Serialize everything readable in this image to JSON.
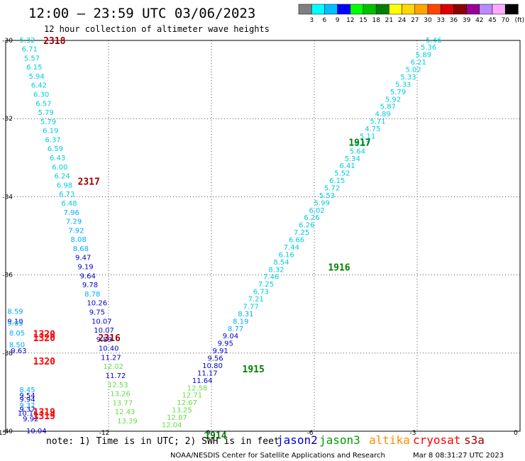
{
  "chart_data": {
    "type": "scatter",
    "title": "12:00 – 23:59 UTC 03/06/2023",
    "subtitle": "12 hour collection of altimeter wave heights",
    "xlim": [
      -15,
      0
    ],
    "ylim": [
      -40,
      -30
    ],
    "x_ticks": [
      -15,
      -12,
      -9,
      -6,
      -3,
      0
    ],
    "y_ticks": [
      -30,
      -32,
      -34,
      -36,
      -38,
      -40
    ],
    "grid": true,
    "color_scale": {
      "unit": "(ft)",
      "labels": [
        "3",
        "6",
        "9",
        "12",
        "15",
        "18",
        "21",
        "24",
        "27",
        "30",
        "33",
        "36",
        "39",
        "42",
        "45",
        "70"
      ],
      "colors": [
        "#7f7f7f",
        "#00ffff",
        "#00bfff",
        "#0000ff",
        "#00ff00",
        "#00c000",
        "#008000",
        "#ffff00",
        "#ffd700",
        "#ffa500",
        "#ff4500",
        "#dd0000",
        "#8b0000",
        "#990099",
        "#bb88ff",
        "#ffaaff",
        "#000000"
      ]
    },
    "series": [
      {
        "name": "jason2",
        "color": "#0000cc",
        "points": []
      },
      {
        "name": "jason3",
        "color": "#009900",
        "points": [
          {
            "x": -12.1,
            "y": -38.42,
            "v": "12.02"
          },
          {
            "x": -12.0,
            "y": -38.92,
            "v": "12.53"
          },
          {
            "x": -11.95,
            "y": -39.16,
            "v": "13.26"
          },
          {
            "x": -11.9,
            "y": -39.4,
            "v": "13.77"
          },
          {
            "x": -11.85,
            "y": -39.64,
            "v": "12.43"
          },
          {
            "x": -11.8,
            "y": -39.88,
            "v": "13.39"
          },
          {
            "x": -10.3,
            "y": -39.1,
            "v": "12.58"
          },
          {
            "x": -10.4,
            "y": -39.3,
            "v": "12.71"
          },
          {
            "x": -10.5,
            "y": -39.5,
            "v": "12.67"
          },
          {
            "x": -10.6,
            "y": -39.7,
            "v": "13.25"
          },
          {
            "x": -10.7,
            "y": -39.9,
            "v": "12.87"
          },
          {
            "x": -10.8,
            "y": -40.1,
            "v": "12.04"
          }
        ]
      },
      {
        "name": "altika",
        "color": "#ff8c00",
        "points": []
      },
      {
        "name": "cryosat",
        "color": "#ff0000",
        "points": [
          {
            "x": -14.3,
            "y": -37.3,
            "v": "1320"
          }
        ]
      },
      {
        "name": "s3a",
        "color": "#990000",
        "points": []
      }
    ],
    "passes": [
      {
        "label": "2318",
        "x": -13.9,
        "y": -30.0,
        "color": "#990000"
      },
      {
        "label": "2317",
        "x": -12.9,
        "y": -33.6,
        "color": "#990000"
      },
      {
        "label": "2316",
        "x": -12.3,
        "y": -37.6,
        "color": "#990000"
      },
      {
        "label": "1320",
        "x": -14.2,
        "y": -37.5,
        "color": "#ff0000"
      },
      {
        "label": "1320",
        "x": -14.2,
        "y": -37.6,
        "color": "#ff0000"
      },
      {
        "label": "1320",
        "x": -14.2,
        "y": -38.2,
        "color": "#ff0000"
      },
      {
        "label": "1319",
        "x": -14.2,
        "y": -39.5,
        "color": "#ff0000"
      },
      {
        "label": "1319",
        "x": -14.2,
        "y": -39.6,
        "color": "#ff0000"
      },
      {
        "label": "1917",
        "x": -5.0,
        "y": -32.6,
        "color": "#008000"
      },
      {
        "label": "1916",
        "x": -5.6,
        "y": -35.8,
        "color": "#008000"
      },
      {
        "label": "1915",
        "x": -8.1,
        "y": -38.4,
        "color": "#008000"
      },
      {
        "label": "1914",
        "x": -9.2,
        "y": -40.1,
        "color": "#008000"
      }
    ],
    "track_a": {
      "comment": "cyan/blue descending track",
      "values": [
        "5.32",
        "6.71",
        "5.57",
        "6.15",
        "5.94",
        "6.42",
        "6.30",
        "6.57",
        "5.79",
        "5.79",
        "6.19",
        "6.37",
        "6.59",
        "6.43",
        "6.00",
        "6.24",
        "6.98",
        "6.73",
        "6.48",
        "7.96",
        "7.29",
        "7.92",
        "8.08",
        "8.68",
        "9.47",
        "9.19",
        "9.64",
        "9.78",
        "8.78",
        "10.26",
        "9.75",
        "10.07",
        "10.07",
        "9.89",
        "10.40",
        "11.27",
        "12.02",
        "11.72",
        "12.53",
        "13.26",
        "13.77",
        "12.43",
        "13.39"
      ],
      "colors": [
        "#00ccdd",
        "#00ccdd",
        "#00ccdd",
        "#00ccdd",
        "#00ccdd",
        "#00ccdd",
        "#00ccdd",
        "#00ccdd",
        "#00ccdd",
        "#00ccdd",
        "#00ccdd",
        "#00ccdd",
        "#00ccdd",
        "#00ccdd",
        "#00ccdd",
        "#00ccdd",
        "#00ccdd",
        "#00ccdd",
        "#00ccdd",
        "#00aaff",
        "#00aaff",
        "#00aaff",
        "#00aaff",
        "#00aaff",
        "#0000cc",
        "#0000cc",
        "#0000cc",
        "#0000cc",
        "#00aaff",
        "#0000cc",
        "#0000cc",
        "#0000cc",
        "#0000cc",
        "#0000cc",
        "#0000cc",
        "#0000cc",
        "#66dd44",
        "#0000cc",
        "#66dd44",
        "#66dd44",
        "#66dd44",
        "#66dd44",
        "#66dd44"
      ]
    },
    "track_b": {
      "comment": "cyan/blue ascending track",
      "values": [
        "5.46",
        "5.36",
        "5.89",
        "6.21",
        "5.02",
        "5.33",
        "5.33",
        "5.79",
        "5.92",
        "5.87",
        "4.89",
        "5.71",
        "4.75",
        "5.11",
        "6.17",
        "5.64",
        "5.34",
        "6.41",
        "5.52",
        "6.15",
        "5.72",
        "5.53",
        "5.99",
        "6.02",
        "6.26",
        "6.26",
        "7.25",
        "6.66",
        "7.44",
        "6.16",
        "8.54",
        "8.32",
        "7.46",
        "7.25",
        "6.73",
        "7.21",
        "7.77",
        "8.31",
        "8.19",
        "8.77",
        "9.04",
        "9.95",
        "9.91",
        "9.56",
        "10.80",
        "11.17",
        "11.64",
        "12.58",
        "12.71",
        "12.67",
        "13.25",
        "12.87",
        "12.04"
      ],
      "colors": [
        "#00ccdd",
        "#00ccdd",
        "#00ccdd",
        "#00ccdd",
        "#00ccdd",
        "#00ccdd",
        "#00ccdd",
        "#00ccdd",
        "#00ccdd",
        "#00ccdd",
        "#00ccdd",
        "#00ccdd",
        "#00ccdd",
        "#00ccdd",
        "#00ccdd",
        "#00ccdd",
        "#00ccdd",
        "#00ccdd",
        "#00ccdd",
        "#00ccdd",
        "#00ccdd",
        "#00ccdd",
        "#00ccdd",
        "#00ccdd",
        "#00ccdd",
        "#00ccdd",
        "#00ccdd",
        "#00ccdd",
        "#00ccdd",
        "#00ccdd",
        "#00ccdd",
        "#00ccdd",
        "#00ccdd",
        "#00ccdd",
        "#00ccdd",
        "#00ccdd",
        "#00ccdd",
        "#00aaff",
        "#00aaff",
        "#00aaff",
        "#0000cc",
        "#0000cc",
        "#0000cc",
        "#0000cc",
        "#0000cc",
        "#0000cc",
        "#0000cc",
        "#66dd44",
        "#66dd44",
        "#66dd44",
        "#66dd44",
        "#66dd44",
        "#66dd44"
      ]
    },
    "track_c": {
      "comment": "short western cluster",
      "values": [
        "8.59",
        "9.10",
        "9.05",
        "8.05",
        "8.50",
        "9.63",
        "8.45",
        "9.54",
        "9.94",
        "9.37",
        "9.37",
        "10.16",
        "9.92",
        "10.04"
      ],
      "colors": [
        "#00aaff",
        "#0000cc",
        "#00aaff",
        "#00aaff",
        "#00aaff",
        "#0000cc",
        "#00aaff",
        "#0000cc",
        "#0000cc",
        "#00aaff",
        "#0000cc",
        "#0000cc",
        "#0000cc",
        "#0000cc"
      ]
    }
  },
  "footer": {
    "note": "note:  1) Time is in UTC;  2) SWH is in feet",
    "missions": [
      {
        "label": "jason2",
        "color": "#0000cc"
      },
      {
        "label": "jason3",
        "color": "#009900"
      },
      {
        "label": "altika",
        "color": "#ff8c00"
      },
      {
        "label": "cryosat",
        "color": "#ff0000"
      },
      {
        "label": "s3a",
        "color": "#990000"
      }
    ],
    "credit": "NOAA/NESDIS Center for Satellite Applications and Research",
    "timestamp": "Mar  8 08:31:27 UTC 2023"
  }
}
